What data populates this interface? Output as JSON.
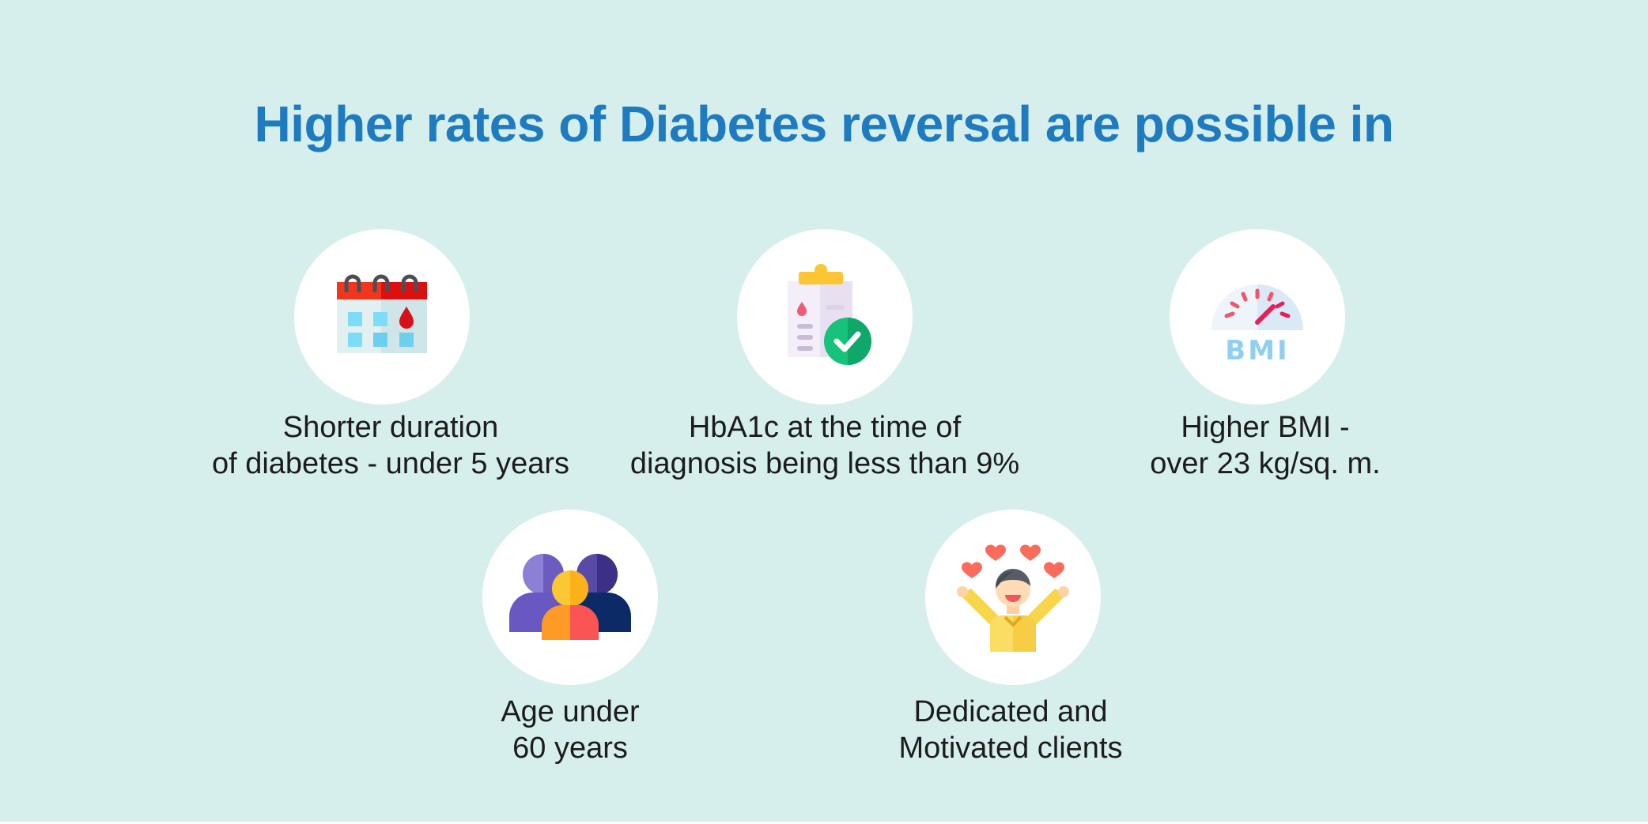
{
  "title": "Higher rates of Diabetes reversal are possible in",
  "colors": {
    "background": "#d6efec",
    "title": "#1f7bc0",
    "circle": "#ffffff",
    "text": "#1c1c1c"
  },
  "items": [
    {
      "icon": "calendar-blood-drop-icon",
      "line1": "Shorter duration",
      "line2": "of diabetes - under 5 years"
    },
    {
      "icon": "clipboard-check-icon",
      "line1": "HbA1c at the time of",
      "line2": "diagnosis being less than 9%"
    },
    {
      "icon": "bmi-gauge-icon",
      "line1": "Higher BMI -",
      "line2": "over 23 kg/sq. m."
    },
    {
      "icon": "group-of-people-icon",
      "line1": "Age under",
      "line2": "60 years"
    },
    {
      "icon": "happy-person-hearts-icon",
      "line1": "Dedicated and",
      "line2": "Motivated clients"
    }
  ],
  "bmi_icon_label": "BMI"
}
